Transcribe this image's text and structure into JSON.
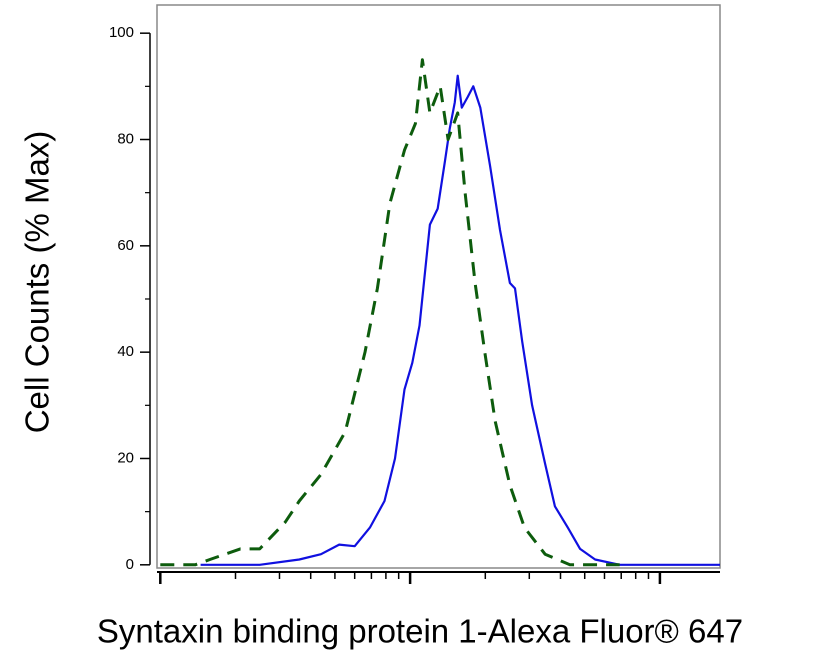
{
  "chart_data": {
    "type": "line",
    "x_label": "Syntaxin binding protein 1-Alexa Fluor® 647",
    "y_label": "Cell Counts (% Max)",
    "x_log": true,
    "xlim": [
      0.97,
      174
    ],
    "xticks": [
      1,
      10,
      100
    ],
    "xminor_ticks": [
      2,
      3,
      4,
      5,
      6,
      7,
      8,
      9,
      20,
      30,
      40,
      50,
      60,
      70,
      80,
      90
    ],
    "ylim": [
      -0.6,
      105.3
    ],
    "yticks": [
      0,
      20,
      40,
      60,
      80,
      100
    ],
    "yminor_ticks": [
      10,
      30,
      50,
      70,
      90
    ],
    "series": [
      {
        "color": "#1010e0",
        "dash": false,
        "x": [
          1.45,
          2.5,
          3.6,
          4.4,
          5.2,
          6.0,
          6.9,
          7.9,
          8.7,
          9.5,
          10.2,
          10.9,
          12.0,
          12.9,
          13.8,
          14.4,
          15.1,
          15.5,
          16.1,
          17.0,
          17.9,
          19.1,
          20.9,
          22.9,
          25.1,
          26.3,
          28.1,
          30.8,
          34.7,
          38.0,
          42.8,
          47.9,
          55,
          69,
          100,
          174
        ],
        "values": [
          0,
          0,
          1,
          2,
          3.8,
          3.5,
          7,
          12,
          20,
          33,
          38,
          45,
          64,
          67,
          76,
          82,
          87,
          92,
          86,
          88,
          90,
          86,
          75,
          63,
          53,
          52,
          42,
          30,
          19,
          11,
          7,
          3,
          1,
          0,
          0,
          0
        ]
      },
      {
        "color": "#0d5c0d",
        "dash": true,
        "x": [
          1,
          1.38,
          1.58,
          2.09,
          2.5,
          3.16,
          3.6,
          4.4,
          5.5,
          6.6,
          7.4,
          8.3,
          9.5,
          10.5,
          11.2,
          12.0,
          13.2,
          14.2,
          15.5,
          16.6,
          18.2,
          19.9,
          21.9,
          25.1,
          28.7,
          34.7,
          43.6,
          69
        ],
        "values": [
          0,
          0,
          1,
          3,
          3,
          8,
          12,
          17,
          25,
          40,
          52,
          68,
          78,
          83,
          95,
          85,
          90,
          80,
          85,
          70,
          53,
          40,
          27,
          15,
          7,
          2,
          0,
          0
        ]
      }
    ]
  }
}
